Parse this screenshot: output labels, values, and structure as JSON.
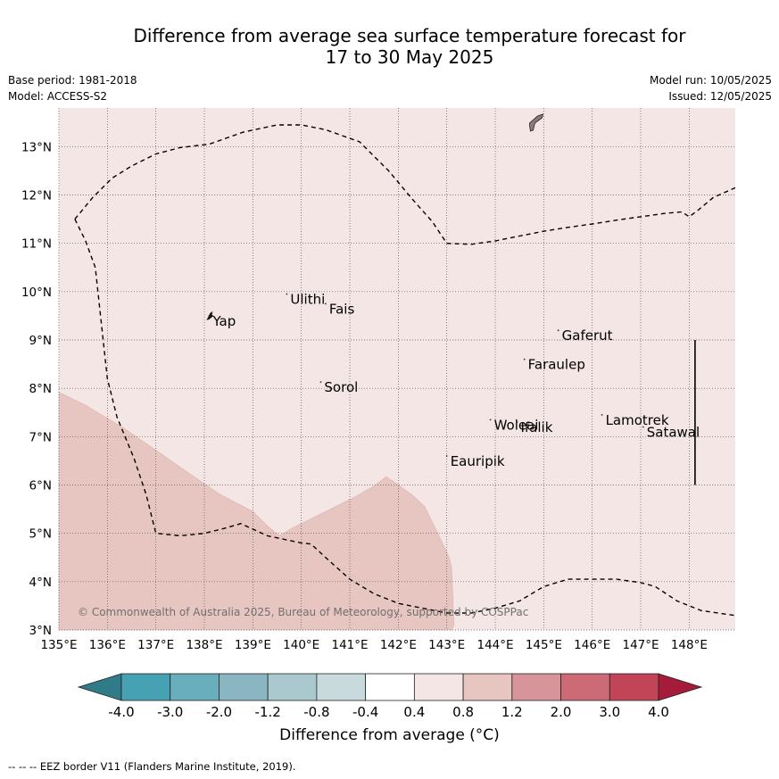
{
  "title_line1": "Difference from average sea surface temperature forecast for",
  "title_line2": "17 to 30 May 2025",
  "base_period": "Base period: 1981-2018",
  "model": "Model: ACCESS-S2",
  "model_run": "Model run: 10/05/2025",
  "issued": "Issued: 12/05/2025",
  "copyright": "© Commonwealth of Australia 2025, Bureau of Meteorology, supported by COSPPac",
  "footer": "--  --  -- EEZ border V11 (Flanders Marine Institute, 2019).",
  "colorbar": {
    "title": "Difference from average (°C)",
    "ticks": [
      "-4.0",
      "-3.0",
      "-2.0",
      "-1.2",
      "-0.8",
      "-0.4",
      "0.4",
      "0.8",
      "1.2",
      "2.0",
      "3.0",
      "4.0"
    ],
    "colors": [
      "#2f7c88",
      "#46a1b2",
      "#69aebc",
      "#8ab6c2",
      "#a9c9cf",
      "#c9dadd",
      "#ffffff",
      "#f4e6e5",
      "#e7c6c1",
      "#d7949a",
      "#cc6b75",
      "#c14556",
      "#a41c3a"
    ]
  },
  "map": {
    "lon_ticks": [
      135,
      136,
      137,
      138,
      139,
      140,
      141,
      142,
      143,
      144,
      145,
      146,
      147,
      148
    ],
    "lat_ticks": [
      3,
      4,
      5,
      6,
      7,
      8,
      9,
      10,
      11,
      12,
      13
    ],
    "lon_labels": [
      "135°E",
      "136°E",
      "137°E",
      "138°E",
      "139°E",
      "140°E",
      "141°E",
      "142°E",
      "143°E",
      "144°E",
      "145°E",
      "146°E",
      "147°E",
      "148°E"
    ],
    "lat_labels": [
      "3°N",
      "4°N",
      "5°N",
      "6°N",
      "7°N",
      "8°N",
      "9°N",
      "10°N",
      "11°N",
      "12°N",
      "13°N"
    ],
    "lon_range": [
      135,
      148.95
    ],
    "lat_range": [
      3,
      13.8
    ],
    "background_color": "#f4e6e5",
    "anomaly_color": "#e7c6c1",
    "islands": [
      {
        "name": "Yap",
        "lon": 138.1,
        "lat": 9.5
      },
      {
        "name": "Ulithi",
        "lon": 139.7,
        "lat": 9.95
      },
      {
        "name": "Fais",
        "lon": 140.5,
        "lat": 9.75
      },
      {
        "name": "Sorol",
        "lon": 140.4,
        "lat": 8.13
      },
      {
        "name": "Gaferut",
        "lon": 145.3,
        "lat": 9.2
      },
      {
        "name": "Faraulep",
        "lon": 144.6,
        "lat": 8.6
      },
      {
        "name": "Woleai",
        "lon": 143.9,
        "lat": 7.35
      },
      {
        "name": "Ifalik",
        "lon": 144.45,
        "lat": 7.3
      },
      {
        "name": "Eauripik",
        "lon": 143.0,
        "lat": 6.6
      },
      {
        "name": "Lamotrek",
        "lon": 146.2,
        "lat": 7.45
      },
      {
        "name": "Satawal",
        "lon": 147.05,
        "lat": 7.2
      }
    ],
    "anomaly_region": [
      [
        135,
        7.92
      ],
      [
        135.55,
        7.65
      ],
      [
        136.3,
        7.2
      ],
      [
        137,
        6.72
      ],
      [
        137.6,
        6.3
      ],
      [
        138.3,
        5.82
      ],
      [
        139,
        5.45
      ],
      [
        139.3,
        5.15
      ],
      [
        139.55,
        4.95
      ],
      [
        139.8,
        5.1
      ],
      [
        140.5,
        5.45
      ],
      [
        141.1,
        5.75
      ],
      [
        141.5,
        5.98
      ],
      [
        141.75,
        6.17
      ],
      [
        142,
        6.0
      ],
      [
        142.3,
        5.78
      ],
      [
        142.55,
        5.55
      ],
      [
        142.9,
        4.82
      ],
      [
        143.05,
        4.5
      ],
      [
        143.1,
        4.3
      ],
      [
        143.15,
        3.1
      ],
      [
        143.1,
        3
      ],
      [
        135,
        3
      ]
    ],
    "eez_border_1": [
      [
        135.33,
        11.5
      ],
      [
        135.55,
        11.05
      ],
      [
        135.75,
        10.5
      ],
      [
        136,
        8.2
      ],
      [
        136.2,
        7.4
      ],
      [
        136.55,
        6.55
      ],
      [
        136.8,
        5.8
      ],
      [
        137,
        5
      ],
      [
        137.5,
        4.95
      ],
      [
        138,
        5
      ],
      [
        138.4,
        5.1
      ],
      [
        138.75,
        5.2
      ],
      [
        139.3,
        4.95
      ],
      [
        140,
        4.8
      ],
      [
        140.2,
        4.78
      ],
      [
        140.5,
        4.5
      ],
      [
        141,
        4.05
      ],
      [
        141.5,
        3.75
      ],
      [
        142,
        3.55
      ],
      [
        142.5,
        3.45
      ],
      [
        143,
        3.35
      ],
      [
        143.5,
        3.35
      ],
      [
        144,
        3.45
      ],
      [
        144.5,
        3.6
      ],
      [
        145,
        3.9
      ],
      [
        145.5,
        4.05
      ],
      [
        146,
        4.05
      ],
      [
        146.5,
        4.05
      ],
      [
        147,
        3.98
      ],
      [
        147.3,
        3.9
      ],
      [
        147.75,
        3.6
      ],
      [
        148.25,
        3.4
      ],
      [
        148.95,
        3.3
      ]
    ],
    "eez_border_2": [
      [
        135.33,
        11.5
      ],
      [
        135.7,
        11.95
      ],
      [
        136.1,
        12.35
      ],
      [
        136.5,
        12.6
      ],
      [
        137,
        12.85
      ],
      [
        137.5,
        12.98
      ],
      [
        138.1,
        13.05
      ],
      [
        138.8,
        13.3
      ],
      [
        139.5,
        13.45
      ],
      [
        140,
        13.45
      ],
      [
        140.5,
        13.35
      ],
      [
        141.2,
        13.1
      ],
      [
        141.8,
        12.5
      ],
      [
        142.3,
        11.9
      ],
      [
        142.7,
        11.45
      ],
      [
        143,
        11.0
      ],
      [
        143.5,
        10.98
      ],
      [
        144,
        11.05
      ],
      [
        144.5,
        11.15
      ],
      [
        145,
        11.25
      ],
      [
        145.5,
        11.33
      ],
      [
        146,
        11.4
      ],
      [
        146.5,
        11.48
      ],
      [
        147,
        11.55
      ],
      [
        147.5,
        11.62
      ],
      [
        147.85,
        11.65
      ],
      [
        148.0,
        11.55
      ],
      [
        148.2,
        11.7
      ],
      [
        148.5,
        11.95
      ],
      [
        148.95,
        12.15
      ]
    ],
    "vertical_line": {
      "lon": 148.12,
      "lat_start": 6.0,
      "lat_end": 9.0
    },
    "guam": {
      "lon": 144.8,
      "lat": 13.45
    }
  }
}
